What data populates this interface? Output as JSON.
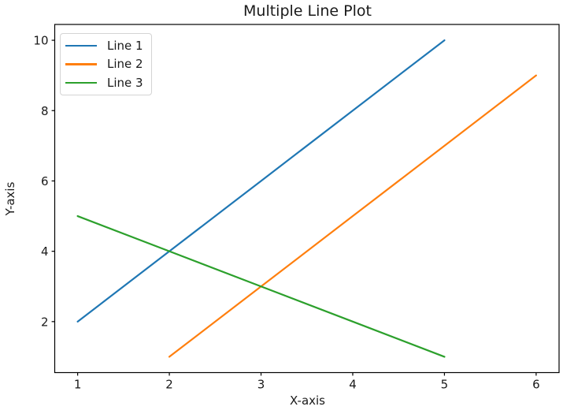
{
  "chart_data": {
    "type": "line",
    "title": "Multiple Line Plot",
    "xlabel": "X-axis",
    "ylabel": "Y-axis",
    "xlim": [
      0.75,
      6.25
    ],
    "ylim": [
      0.55,
      10.45
    ],
    "xticks": [
      1,
      2,
      3,
      4,
      5,
      6
    ],
    "yticks": [
      2,
      4,
      6,
      8,
      10
    ],
    "grid": false,
    "legend_position": "upper-left",
    "series": [
      {
        "name": "Line 1",
        "color": "#1f77b4",
        "x": [
          1,
          2,
          3,
          4,
          5
        ],
        "y": [
          2,
          4,
          6,
          8,
          10
        ]
      },
      {
        "name": "Line 2",
        "color": "#ff7f0e",
        "x": [
          2,
          3,
          4,
          5,
          6
        ],
        "y": [
          1,
          3,
          5,
          7,
          9
        ]
      },
      {
        "name": "Line 3",
        "color": "#2ca02c",
        "x": [
          1,
          2,
          3,
          4,
          5
        ],
        "y": [
          5,
          4,
          3,
          2,
          1
        ]
      }
    ]
  },
  "figure": {
    "background": "#ffffff",
    "axis_color": "#000000",
    "text_color": "#1a1a1a",
    "legend_border_color": "#d4d4d4"
  }
}
